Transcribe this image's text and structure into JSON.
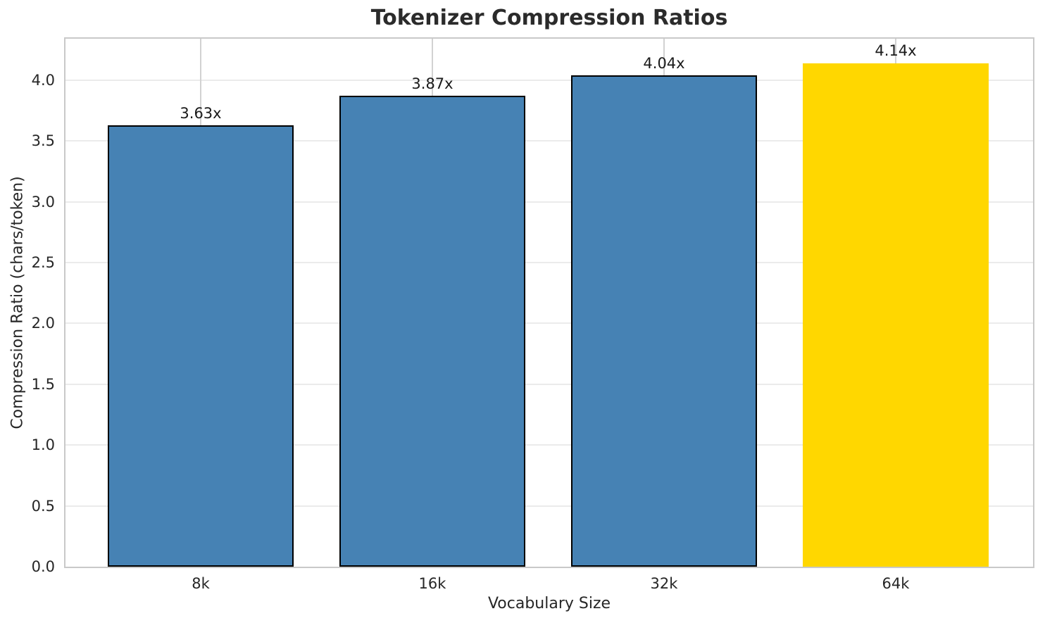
{
  "chart_data": {
    "type": "bar",
    "title": "Tokenizer Compression Ratios",
    "xlabel": "Vocabulary Size",
    "ylabel": "Compression Ratio (chars/token)",
    "categories": [
      "8k",
      "16k",
      "32k",
      "64k"
    ],
    "values": [
      3.63,
      3.87,
      4.04,
      4.14
    ],
    "bar_labels": [
      "3.63x",
      "3.87x",
      "4.04x",
      "4.14x"
    ],
    "ylim": [
      0,
      4.34
    ],
    "ytick_labels": [
      "0.0",
      "0.5",
      "1.0",
      "1.5",
      "2.0",
      "2.5",
      "3.0",
      "3.5",
      "4.0"
    ],
    "grid": true,
    "legend": "none",
    "highlight_index": 3,
    "colors": {
      "bar": "#4682B4",
      "bar_highlight": "#FFD700",
      "bar_edge": "#000000"
    }
  }
}
